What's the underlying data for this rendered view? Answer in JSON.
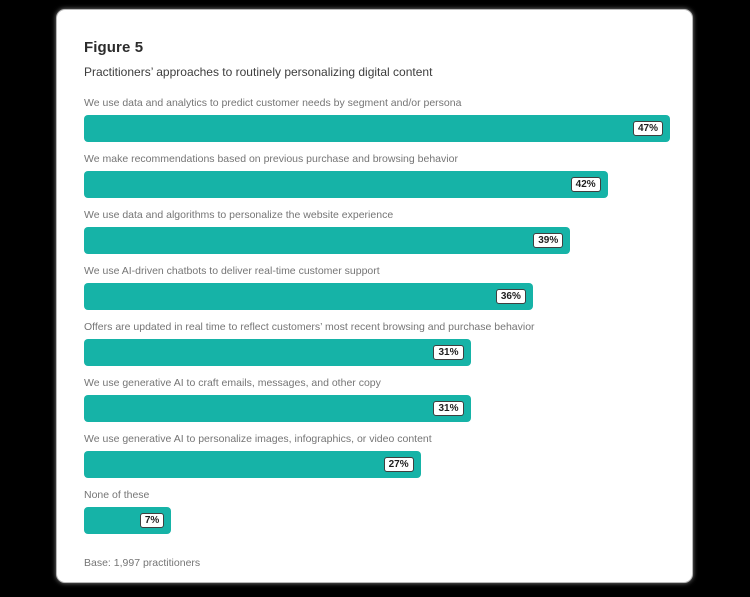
{
  "page": {
    "background": "#000000"
  },
  "card": {
    "title": "Figure 5",
    "subtitle": "Practitioners’ approaches to routinely personalizing digital content",
    "base_note": "Base: 1,997 practitioners"
  },
  "chart_data": {
    "type": "bar",
    "orientation": "horizontal",
    "title": "Practitioners’ approaches to routinely personalizing digital content",
    "categories": [
      "We use data and analytics to predict customer needs by segment and/or persona",
      "We make recommendations based on previous purchase and browsing behavior",
      "We use data and algorithms to personalize the website experience",
      "We use AI-driven chatbots to deliver real-time customer support",
      "Offers are updated in real time to reflect customers’ most recent browsing and purchase behavior",
      "We use generative AI to craft emails, messages, and other copy",
      "We use generative AI to personalize images, infographics, or video content",
      "None of these"
    ],
    "values": [
      47,
      42,
      39,
      36,
      31,
      31,
      27,
      7
    ],
    "value_labels": [
      "47%",
      "42%",
      "39%",
      "36%",
      "31%",
      "31%",
      "27%",
      "7%"
    ],
    "value_suffix": "%",
    "xlim": [
      0,
      47
    ],
    "bar_color": "#16b3a7",
    "grid": false,
    "legend": false,
    "footnote": "Base: 1,997 practitioners"
  }
}
